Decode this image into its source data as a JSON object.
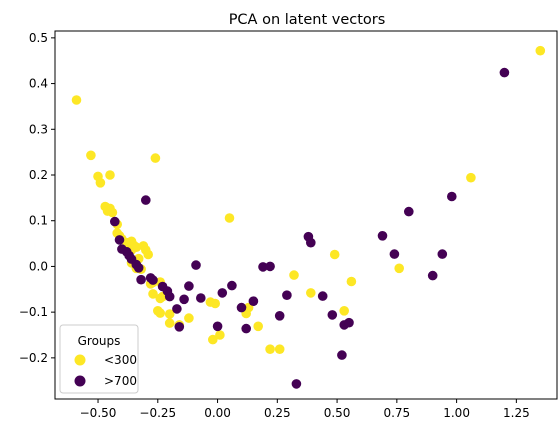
{
  "chart_data": {
    "type": "scatter",
    "title": "PCA on latent vectors",
    "xlabel": "",
    "ylabel": "",
    "xlim": [
      -0.68,
      1.42
    ],
    "ylim": [
      -0.29,
      0.515
    ],
    "x_ticks": [
      -0.5,
      -0.25,
      0.0,
      0.25,
      0.5,
      0.75,
      1.0,
      1.25
    ],
    "x_tick_labels": [
      "−0.50",
      "−0.25",
      "0.00",
      "0.25",
      "0.50",
      "0.75",
      "1.00",
      "1.25"
    ],
    "y_ticks": [
      -0.2,
      -0.1,
      0.0,
      0.1,
      0.2,
      0.3,
      0.4,
      0.5
    ],
    "y_tick_labels": [
      "−0.2",
      "−0.1",
      "0.0",
      "0.1",
      "0.2",
      "0.3",
      "0.4",
      "0.5"
    ],
    "grid": false,
    "legend": {
      "title": "Groups",
      "placement": "lower-left",
      "entries": [
        "<300",
        ">700"
      ]
    },
    "series": [
      {
        "name": "<300",
        "color": "#fde725",
        "points": [
          [
            -0.59,
            0.364
          ],
          [
            -0.53,
            0.243
          ],
          [
            -0.5,
            0.197
          ],
          [
            -0.49,
            0.183
          ],
          [
            -0.45,
            0.2
          ],
          [
            -0.26,
            0.237
          ],
          [
            -0.47,
            0.131
          ],
          [
            -0.45,
            0.127
          ],
          [
            -0.46,
            0.121
          ],
          [
            -0.44,
            0.118
          ],
          [
            -0.42,
            0.092
          ],
          [
            -0.42,
            0.073
          ],
          [
            -0.41,
            0.067
          ],
          [
            -0.4,
            0.06
          ],
          [
            -0.38,
            0.052
          ],
          [
            -0.36,
            0.055
          ],
          [
            -0.35,
            0.046
          ],
          [
            -0.36,
            0.036
          ],
          [
            -0.34,
            0.042
          ],
          [
            -0.31,
            0.045
          ],
          [
            -0.3,
            0.036
          ],
          [
            -0.29,
            0.026
          ],
          [
            -0.33,
            0.017
          ],
          [
            -0.34,
            0.013
          ],
          [
            -0.36,
            0.008
          ],
          [
            -0.34,
            -0.004
          ],
          [
            -0.32,
            -0.006
          ],
          [
            -0.28,
            -0.038
          ],
          [
            -0.27,
            -0.035
          ],
          [
            -0.24,
            -0.034
          ],
          [
            -0.27,
            -0.06
          ],
          [
            -0.23,
            -0.066
          ],
          [
            -0.24,
            -0.07
          ],
          [
            -0.25,
            -0.097
          ],
          [
            -0.24,
            -0.102
          ],
          [
            -0.2,
            -0.104
          ],
          [
            -0.2,
            -0.124
          ],
          [
            -0.16,
            -0.128
          ],
          [
            -0.12,
            -0.113
          ],
          [
            0.05,
            0.106
          ],
          [
            -0.03,
            -0.078
          ],
          [
            -0.01,
            -0.081
          ],
          [
            0.01,
            -0.15
          ],
          [
            -0.02,
            -0.16
          ],
          [
            0.12,
            -0.103
          ],
          [
            0.13,
            -0.09
          ],
          [
            0.17,
            -0.131
          ],
          [
            0.22,
            -0.181
          ],
          [
            0.26,
            -0.181
          ],
          [
            0.32,
            -0.019
          ],
          [
            0.39,
            -0.058
          ],
          [
            0.49,
            0.026
          ],
          [
            0.53,
            -0.097
          ],
          [
            0.56,
            -0.033
          ],
          [
            0.76,
            -0.004
          ],
          [
            1.06,
            0.194
          ],
          [
            1.35,
            0.472
          ]
        ]
      },
      {
        "name": ">700",
        "color": "#440154",
        "points": [
          [
            -0.43,
            0.098
          ],
          [
            -0.41,
            0.058
          ],
          [
            -0.4,
            0.038
          ],
          [
            -0.38,
            0.032
          ],
          [
            -0.37,
            0.024
          ],
          [
            -0.36,
            0.016
          ],
          [
            -0.34,
            0.004
          ],
          [
            -0.33,
            -0.003
          ],
          [
            -0.32,
            -0.029
          ],
          [
            -0.3,
            0.145
          ],
          [
            -0.28,
            -0.025
          ],
          [
            -0.27,
            -0.03
          ],
          [
            -0.23,
            -0.044
          ],
          [
            -0.21,
            -0.054
          ],
          [
            -0.2,
            -0.066
          ],
          [
            -0.17,
            -0.093
          ],
          [
            -0.16,
            -0.132
          ],
          [
            -0.14,
            -0.072
          ],
          [
            -0.12,
            -0.043
          ],
          [
            -0.09,
            0.003
          ],
          [
            -0.07,
            -0.069
          ],
          [
            0.0,
            -0.131
          ],
          [
            0.02,
            -0.058
          ],
          [
            0.06,
            -0.042
          ],
          [
            0.1,
            -0.09
          ],
          [
            0.12,
            -0.136
          ],
          [
            0.15,
            -0.076
          ],
          [
            0.19,
            -0.001
          ],
          [
            0.22,
            0.0
          ],
          [
            0.26,
            -0.108
          ],
          [
            0.29,
            -0.063
          ],
          [
            0.33,
            -0.257
          ],
          [
            0.38,
            0.065
          ],
          [
            0.39,
            0.052
          ],
          [
            0.44,
            -0.065
          ],
          [
            0.48,
            -0.106
          ],
          [
            0.52,
            -0.194
          ],
          [
            0.53,
            -0.128
          ],
          [
            0.55,
            -0.123
          ],
          [
            0.69,
            0.067
          ],
          [
            0.74,
            0.027
          ],
          [
            0.8,
            0.12
          ],
          [
            0.9,
            -0.02
          ],
          [
            0.94,
            0.027
          ],
          [
            0.98,
            0.153
          ],
          [
            1.2,
            0.424
          ]
        ]
      }
    ]
  }
}
